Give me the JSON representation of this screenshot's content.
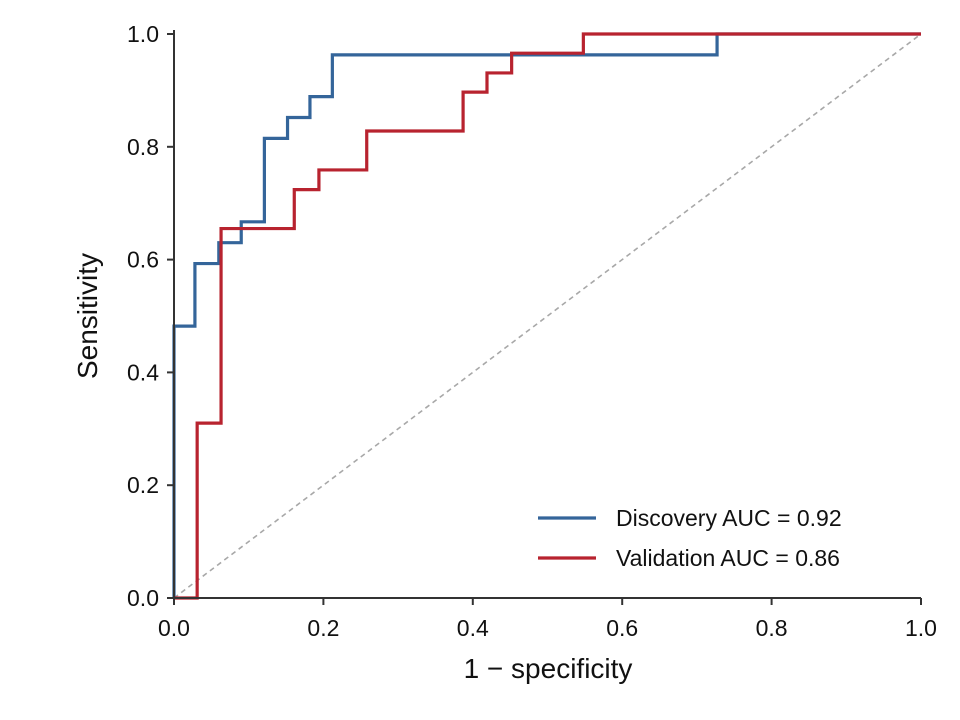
{
  "chart_data": {
    "type": "line",
    "title": "",
    "xlabel": "1 − specificity",
    "ylabel": "Sensitivity",
    "xlim": [
      0,
      1
    ],
    "ylim": [
      0,
      1
    ],
    "x_ticks": [
      "0.0",
      "0.2",
      "0.4",
      "0.6",
      "0.8",
      "1.0"
    ],
    "y_ticks": [
      "0.0",
      "0.2",
      "0.4",
      "0.6",
      "0.8",
      "1.0"
    ],
    "grid": false,
    "legend_position": "lower-right",
    "reference_line": {
      "style": "dashed",
      "color": "#a8a8a8",
      "from": [
        0,
        0
      ],
      "to": [
        1,
        1
      ]
    },
    "series": [
      {
        "name": "Discovery",
        "legend_label": "Discovery  AUC = 0.92",
        "auc": 0.92,
        "color": "#34659a",
        "step": true,
        "points": [
          [
            0,
            0
          ],
          [
            0,
            0.482
          ],
          [
            0.028,
            0.482
          ],
          [
            0.028,
            0.593
          ],
          [
            0.06,
            0.593
          ],
          [
            0.06,
            0.63
          ],
          [
            0.09,
            0.63
          ],
          [
            0.09,
            0.667
          ],
          [
            0.121,
            0.667
          ],
          [
            0.121,
            0.815
          ],
          [
            0.152,
            0.815
          ],
          [
            0.152,
            0.852
          ],
          [
            0.182,
            0.852
          ],
          [
            0.182,
            0.889
          ],
          [
            0.212,
            0.889
          ],
          [
            0.212,
            0.963
          ],
          [
            0.727,
            0.963
          ],
          [
            0.727,
            1.0
          ],
          [
            1.0,
            1.0
          ]
        ]
      },
      {
        "name": "Validation",
        "legend_label": "Validation  AUC = 0.86",
        "auc": 0.86,
        "color": "#b8232f",
        "step": true,
        "points": [
          [
            0,
            0
          ],
          [
            0.031,
            0
          ],
          [
            0.031,
            0.31
          ],
          [
            0.063,
            0.31
          ],
          [
            0.063,
            0.655
          ],
          [
            0.161,
            0.655
          ],
          [
            0.161,
            0.724
          ],
          [
            0.194,
            0.724
          ],
          [
            0.194,
            0.759
          ],
          [
            0.258,
            0.759
          ],
          [
            0.258,
            0.828
          ],
          [
            0.387,
            0.828
          ],
          [
            0.387,
            0.897
          ],
          [
            0.419,
            0.897
          ],
          [
            0.419,
            0.931
          ],
          [
            0.452,
            0.931
          ],
          [
            0.452,
            0.966
          ],
          [
            0.548,
            0.966
          ],
          [
            0.548,
            1.0
          ],
          [
            1.0,
            1.0
          ]
        ]
      }
    ]
  }
}
